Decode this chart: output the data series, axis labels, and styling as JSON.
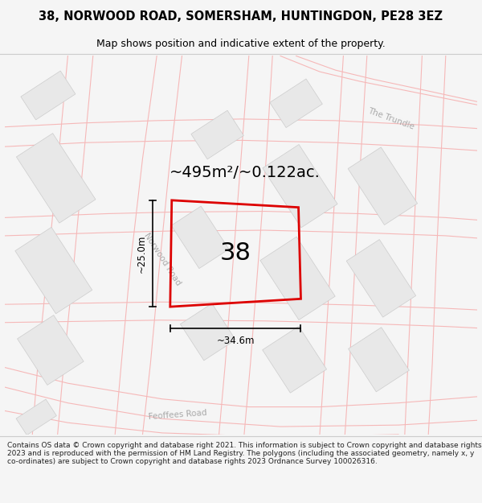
{
  "title": "38, NORWOOD ROAD, SOMERSHAM, HUNTINGDON, PE28 3EZ",
  "subtitle": "Map shows position and indicative extent of the property.",
  "footer": "Contains OS data © Crown copyright and database right 2021. This information is subject to Crown copyright and database rights 2023 and is reproduced with the permission of HM Land Registry. The polygons (including the associated geometry, namely x, y co-ordinates) are subject to Crown copyright and database rights 2023 Ordnance Survey 100026316.",
  "area_text": "~495m²/~0.122ac.",
  "number_label": "38",
  "dim_height": "~25.0m",
  "dim_width": "~34.6m",
  "road_norwood": "Norwood Road",
  "road_feoffees": "Feoffees Road",
  "road_trundle": "The Trundle",
  "bg_color": "#f5f5f5",
  "map_bg": "#ffffff",
  "plot_color": "#dd0000",
  "building_fill": "#e8e8e8",
  "building_edge": "#cccccc",
  "faint_road_color": "#f5b8b8",
  "faint_block_color": "#d8d8d8",
  "road_label_color": "#aaaaaa",
  "title_color": "#000000",
  "footer_color": "#222222",
  "title_fontsize": 10.5,
  "subtitle_fontsize": 9,
  "area_fontsize": 14,
  "number_fontsize": 22,
  "dim_fontsize": 8.5,
  "road_label_fontsize": 7.5,
  "footer_fontsize": 6.5
}
